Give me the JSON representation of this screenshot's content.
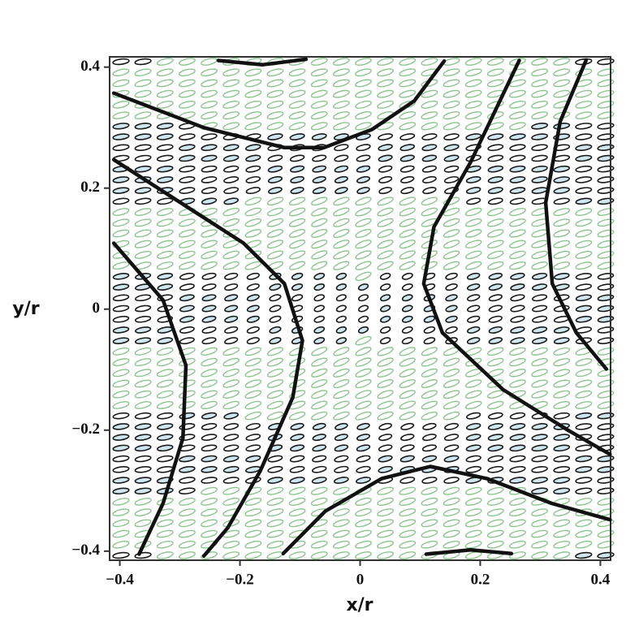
{
  "chart_data": {
    "type": "line",
    "xlabel": "x/r",
    "ylabel": "y/r",
    "xlim": [
      -0.417,
      0.417
    ],
    "ylim": [
      -0.415,
      0.417
    ],
    "xticks": [
      {
        "value": -0.4,
        "label": "−0.4"
      },
      {
        "value": -0.2,
        "label": "−0.2"
      },
      0,
      0.2,
      0.4
    ],
    "yticks": [
      {
        "value": -0.4,
        "label": "−0.4"
      },
      {
        "value": -0.2,
        "label": "−0.2"
      },
      0,
      0.2,
      0.4
    ],
    "series": [
      {
        "color": "#111111",
        "x": [
          -0.41,
          -0.26,
          -0.126,
          -0.06,
          0.02,
          0.09,
          0.14
        ],
        "values": [
          0.357,
          0.3,
          0.267,
          0.267,
          0.297,
          0.344,
          0.41
        ]
      },
      {
        "color": "#111111",
        "x": [
          -0.41,
          -0.288,
          -0.194,
          -0.126,
          -0.096,
          -0.112,
          -0.166,
          -0.22,
          -0.26
        ],
        "values": [
          0.247,
          0.169,
          0.109,
          0.042,
          -0.052,
          -0.146,
          -0.267,
          -0.361,
          -0.408
        ]
      },
      {
        "color": "#111111",
        "x": [
          -0.41,
          -0.328,
          -0.29,
          -0.295,
          -0.328,
          -0.368
        ],
        "values": [
          0.109,
          0.015,
          -0.093,
          -0.213,
          -0.321,
          -0.405
        ]
      },
      {
        "color": "#111111",
        "x": [
          0.265,
          0.184,
          0.123,
          0.106,
          0.137,
          0.238,
          0.346,
          0.416
        ],
        "values": [
          0.411,
          0.243,
          0.136,
          0.042,
          -0.039,
          -0.133,
          -0.2,
          -0.24
        ]
      },
      {
        "color": "#111111",
        "x": [
          0.376,
          0.333,
          0.309,
          0.32,
          0.36,
          0.41
        ],
        "values": [
          0.411,
          0.31,
          0.176,
          0.042,
          -0.039,
          -0.099
        ]
      },
      {
        "color": "#111111",
        "x": [
          -0.128,
          -0.058,
          0.036,
          0.117,
          0.211,
          0.319,
          0.416
        ],
        "values": [
          -0.404,
          -0.334,
          -0.28,
          -0.26,
          -0.28,
          -0.321,
          -0.348
        ]
      },
      {
        "color": "#111111",
        "x": [
          -0.236,
          -0.162,
          -0.09
        ],
        "values": [
          0.411,
          0.404,
          0.413
        ]
      },
      {
        "color": "#111111",
        "x": [
          0.11,
          0.184,
          0.252
        ],
        "values": [
          -0.405,
          -0.398,
          -0.404
        ]
      }
    ]
  }
}
